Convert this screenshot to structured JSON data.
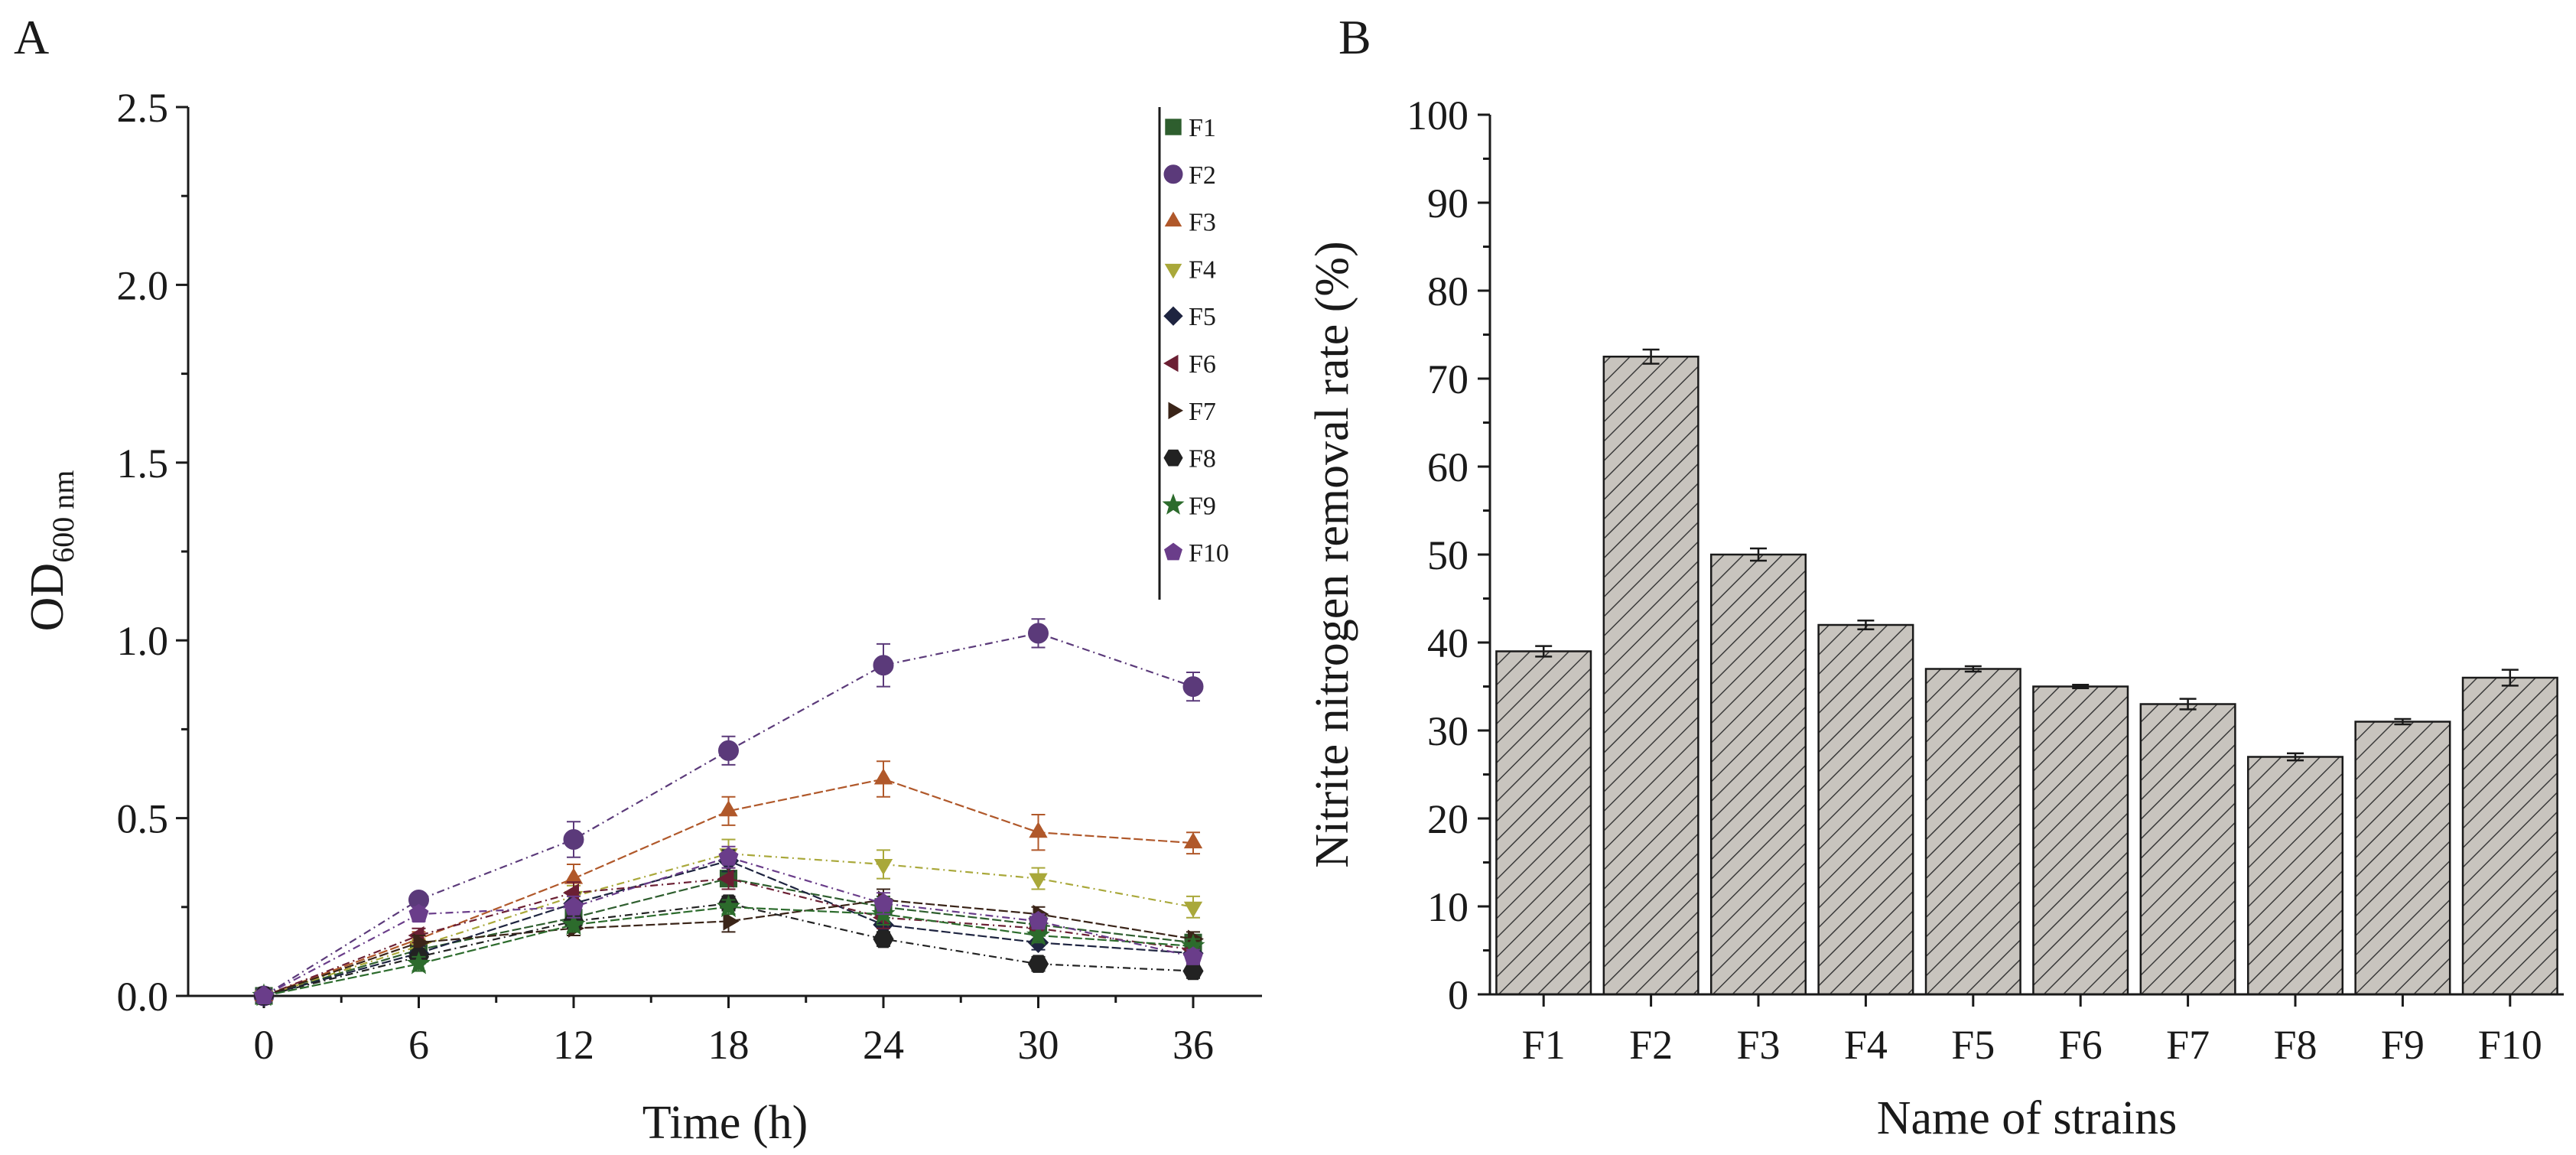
{
  "chart_data": [
    {
      "panel_label": "A",
      "type": "line",
      "xlabel": "Time (h)",
      "ylabel_main": "OD",
      "ylabel_sub": "600 nm",
      "x": [
        0,
        6,
        12,
        18,
        24,
        30,
        36
      ],
      "x_ticks": [
        "0",
        "6",
        "12",
        "18",
        "24",
        "30",
        "36"
      ],
      "y_ticks": [
        "0.0",
        "0.5",
        "1.0",
        "1.5",
        "2.0",
        "2.5"
      ],
      "ylim": [
        0,
        2.5
      ],
      "legend_position": "top-right",
      "series": [
        {
          "name": "F1",
          "marker": "square",
          "color": "#2e5e2e",
          "values": [
            0,
            0.13,
            0.22,
            0.33,
            0.25,
            0.2,
            0.15
          ],
          "err": [
            0,
            0.02,
            0.03,
            0.03,
            0.03,
            0.02,
            0.02
          ]
        },
        {
          "name": "F2",
          "marker": "circle",
          "color": "#5b3a7a",
          "values": [
            0,
            0.27,
            0.44,
            0.69,
            0.93,
            1.02,
            0.87
          ],
          "err": [
            0,
            0.02,
            0.05,
            0.04,
            0.06,
            0.04,
            0.04
          ]
        },
        {
          "name": "F3",
          "marker": "triangle-up",
          "color": "#b0582a",
          "values": [
            0,
            0.16,
            0.33,
            0.52,
            0.61,
            0.46,
            0.43
          ],
          "err": [
            0,
            0.02,
            0.04,
            0.04,
            0.05,
            0.05,
            0.03
          ]
        },
        {
          "name": "F4",
          "marker": "triangle-down",
          "color": "#a9a83a",
          "values": [
            0,
            0.14,
            0.28,
            0.4,
            0.37,
            0.33,
            0.25
          ],
          "err": [
            0,
            0.02,
            0.03,
            0.04,
            0.04,
            0.03,
            0.03
          ]
        },
        {
          "name": "F5",
          "marker": "diamond",
          "color": "#1e2440",
          "values": [
            0,
            0.12,
            0.26,
            0.38,
            0.2,
            0.15,
            0.12
          ],
          "err": [
            0,
            0.02,
            0.03,
            0.03,
            0.03,
            0.02,
            0.02
          ]
        },
        {
          "name": "F6",
          "marker": "triangle-left",
          "color": "#6b1f33",
          "values": [
            0,
            0.17,
            0.29,
            0.33,
            0.22,
            0.19,
            0.13
          ],
          "err": [
            0,
            0.02,
            0.03,
            0.03,
            0.03,
            0.02,
            0.02
          ]
        },
        {
          "name": "F7",
          "marker": "triangle-right",
          "color": "#3a2418",
          "values": [
            0,
            0.15,
            0.19,
            0.21,
            0.27,
            0.23,
            0.16
          ],
          "err": [
            0,
            0.02,
            0.02,
            0.03,
            0.03,
            0.02,
            0.02
          ]
        },
        {
          "name": "F8",
          "marker": "hexagon",
          "color": "#222222",
          "values": [
            0,
            0.11,
            0.21,
            0.26,
            0.16,
            0.09,
            0.07
          ],
          "err": [
            0,
            0.02,
            0.02,
            0.02,
            0.02,
            0.02,
            0.02
          ]
        },
        {
          "name": "F9",
          "marker": "star",
          "color": "#2c6b2c",
          "values": [
            0,
            0.09,
            0.2,
            0.25,
            0.23,
            0.17,
            0.14
          ],
          "err": [
            0,
            0.02,
            0.02,
            0.02,
            0.03,
            0.02,
            0.02
          ]
        },
        {
          "name": "F10",
          "marker": "pentagon",
          "color": "#6a3d8a",
          "values": [
            0,
            0.23,
            0.25,
            0.39,
            0.26,
            0.21,
            0.11
          ],
          "err": [
            0,
            0.02,
            0.03,
            0.03,
            0.03,
            0.02,
            0.02
          ]
        }
      ]
    },
    {
      "panel_label": "B",
      "type": "bar",
      "xlabel": "Name of strains",
      "ylabel": "Nitrite nitrogen removal rate (%)",
      "categories": [
        "F1",
        "F2",
        "F3",
        "F4",
        "F5",
        "F6",
        "F7",
        "F8",
        "F9",
        "F10"
      ],
      "values": [
        39,
        72.5,
        50,
        42,
        37,
        35,
        33,
        27,
        31,
        36
      ],
      "err": [
        0.6,
        0.8,
        0.7,
        0.5,
        0.3,
        0.2,
        0.6,
        0.4,
        0.3,
        0.9
      ],
      "y_ticks": [
        "0",
        "10",
        "20",
        "30",
        "40",
        "50",
        "60",
        "70",
        "80",
        "90",
        "100"
      ],
      "ylim": [
        0,
        100
      ],
      "bar_fill": "hatched gray",
      "bar_color": "#c8c4be"
    }
  ]
}
